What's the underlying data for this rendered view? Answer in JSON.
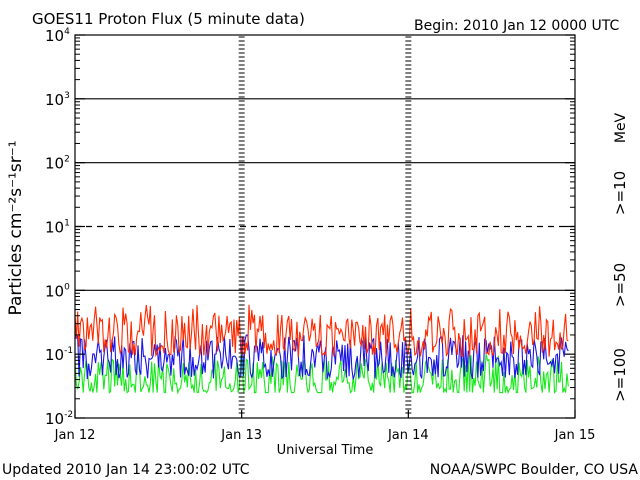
{
  "chart_data": {
    "type": "line",
    "title": "GOES11 Proton Flux (5 minute data)",
    "begin_label": "Begin: 2010 Jan 12 0000 UTC",
    "xlabel": "Universal Time",
    "ylabel": "Particles cm⁻²s⁻¹sr⁻¹",
    "y_scale": "log",
    "ylim": [
      0.01,
      10000
    ],
    "y_ticks": [
      {
        "base": "10",
        "exp": "-2"
      },
      {
        "base": "10",
        "exp": "-1"
      },
      {
        "base": "10",
        "exp": "0"
      },
      {
        "base": "10",
        "exp": "1"
      },
      {
        "base": "10",
        "exp": "2"
      },
      {
        "base": "10",
        "exp": "3"
      },
      {
        "base": "10",
        "exp": "4"
      }
    ],
    "x_ticks": [
      "Jan 12",
      "Jan 13",
      "Jan 14",
      "Jan 15"
    ],
    "xlim_days": [
      0,
      3
    ],
    "data_end_day": 2.96,
    "grid": "solid at 10^0, 10^2, 10^3; dashed at 10^1 (threshold)",
    "unit_label": "MeV",
    "series": [
      {
        "name": ">=10",
        "color": "#ff2a00",
        "typical": 0.2,
        "min": 0.09,
        "max": 0.6
      },
      {
        "name": ">=50",
        "color": "#1a14e6",
        "typical": 0.09,
        "min": 0.04,
        "max": 0.2
      },
      {
        "name": ">=100",
        "color": "#17e81a",
        "typical": 0.04,
        "min": 0.025,
        "max": 0.1
      }
    ],
    "footer_left": "Updated 2010 Jan 14 23:00:02 UTC",
    "footer_right": "NOAA/SWPC Boulder, CO USA"
  }
}
